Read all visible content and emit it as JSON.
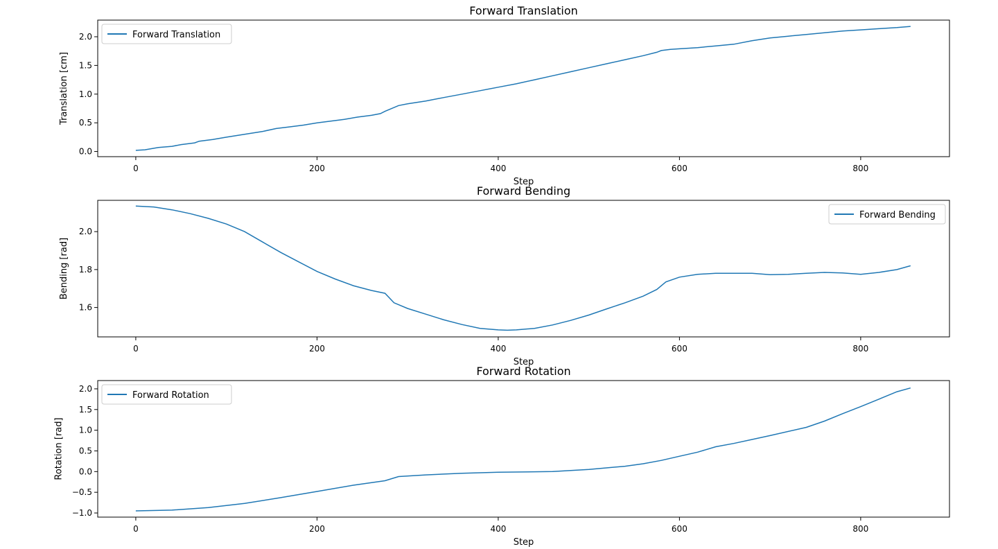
{
  "figure": {
    "line_color": "#1f77b4",
    "background": "#ffffff"
  },
  "chart_data": [
    {
      "type": "line",
      "title": "Forward Translation",
      "xlabel": "Step",
      "ylabel": "Translation [cm]",
      "xlim": [
        -42,
        898
      ],
      "ylim": [
        -0.09,
        2.29
      ],
      "xticks": [
        0,
        200,
        400,
        600,
        800
      ],
      "xtick_labels": [
        "0",
        "200",
        "400",
        "600",
        "800"
      ],
      "yticks": [
        0.0,
        0.5,
        1.0,
        1.5,
        2.0
      ],
      "ytick_labels": [
        "0.0",
        "0.5",
        "1.0",
        "1.5",
        "2.0"
      ],
      "legend_position": "top-left",
      "grid": false,
      "series": [
        {
          "name": "Forward Translation",
          "color": "#1f77b4",
          "x": [
            0,
            10,
            25,
            40,
            50,
            65,
            70,
            85,
            100,
            120,
            140,
            155,
            170,
            185,
            200,
            215,
            230,
            245,
            260,
            270,
            275,
            290,
            300,
            320,
            340,
            360,
            380,
            400,
            420,
            440,
            460,
            480,
            500,
            520,
            540,
            560,
            575,
            580,
            590,
            600,
            620,
            640,
            660,
            680,
            700,
            720,
            740,
            760,
            780,
            800,
            820,
            840,
            855
          ],
          "y": [
            0.02,
            0.03,
            0.07,
            0.09,
            0.12,
            0.15,
            0.18,
            0.21,
            0.25,
            0.3,
            0.35,
            0.4,
            0.43,
            0.46,
            0.5,
            0.53,
            0.56,
            0.6,
            0.63,
            0.66,
            0.7,
            0.8,
            0.83,
            0.88,
            0.94,
            1.0,
            1.06,
            1.12,
            1.18,
            1.25,
            1.32,
            1.39,
            1.46,
            1.53,
            1.6,
            1.67,
            1.73,
            1.76,
            1.78,
            1.79,
            1.81,
            1.84,
            1.87,
            1.93,
            1.98,
            2.01,
            2.04,
            2.07,
            2.1,
            2.12,
            2.14,
            2.16,
            2.18
          ]
        }
      ]
    },
    {
      "type": "line",
      "title": "Forward Bending",
      "xlabel": "Step",
      "ylabel": "Bending [rad]",
      "xlim": [
        -42,
        898
      ],
      "ylim": [
        1.445,
        2.165
      ],
      "xticks": [
        0,
        200,
        400,
        600,
        800
      ],
      "xtick_labels": [
        "0",
        "200",
        "400",
        "600",
        "800"
      ],
      "yticks": [
        1.6,
        1.8,
        2.0
      ],
      "ytick_labels": [
        "1.6",
        "1.8",
        "2.0"
      ],
      "legend_position": "top-right",
      "grid": false,
      "series": [
        {
          "name": "Forward Bending",
          "color": "#1f77b4",
          "x": [
            0,
            20,
            40,
            60,
            80,
            100,
            120,
            140,
            160,
            180,
            200,
            220,
            240,
            260,
            275,
            285,
            300,
            320,
            340,
            360,
            380,
            400,
            410,
            420,
            440,
            460,
            480,
            500,
            520,
            540,
            560,
            575,
            585,
            600,
            620,
            640,
            660,
            680,
            700,
            720,
            740,
            760,
            780,
            800,
            820,
            840,
            855
          ],
          "y": [
            2.135,
            2.13,
            2.115,
            2.095,
            2.07,
            2.04,
            2.0,
            1.945,
            1.89,
            1.84,
            1.79,
            1.75,
            1.715,
            1.69,
            1.675,
            1.625,
            1.595,
            1.565,
            1.535,
            1.51,
            1.49,
            1.482,
            1.48,
            1.482,
            1.49,
            1.508,
            1.532,
            1.56,
            1.593,
            1.625,
            1.66,
            1.695,
            1.735,
            1.76,
            1.775,
            1.78,
            1.78,
            1.78,
            1.773,
            1.775,
            1.78,
            1.785,
            1.782,
            1.775,
            1.785,
            1.8,
            1.82
          ]
        }
      ]
    },
    {
      "type": "line",
      "title": "Forward Rotation",
      "xlabel": "Step",
      "ylabel": "Rotation [rad]",
      "xlim": [
        -42,
        898
      ],
      "ylim": [
        -1.1,
        2.2
      ],
      "xticks": [
        0,
        200,
        400,
        600,
        800
      ],
      "xtick_labels": [
        "0",
        "200",
        "400",
        "600",
        "800"
      ],
      "yticks": [
        -1.0,
        -0.5,
        0.0,
        0.5,
        1.0,
        1.5,
        2.0
      ],
      "ytick_labels": [
        "−1.0",
        "−0.5",
        "0.0",
        "0.5",
        "1.0",
        "1.5",
        "2.0"
      ],
      "legend_position": "top-left",
      "grid": false,
      "series": [
        {
          "name": "Forward Rotation",
          "color": "#1f77b4",
          "x": [
            0,
            40,
            80,
            120,
            160,
            200,
            240,
            275,
            290,
            320,
            360,
            400,
            440,
            460,
            500,
            540,
            560,
            580,
            600,
            620,
            640,
            660,
            700,
            740,
            760,
            780,
            800,
            820,
            840,
            855
          ],
          "y": [
            -0.95,
            -0.93,
            -0.87,
            -0.77,
            -0.63,
            -0.48,
            -0.33,
            -0.22,
            -0.12,
            -0.08,
            -0.04,
            -0.015,
            -0.005,
            0.0,
            0.05,
            0.13,
            0.19,
            0.27,
            0.37,
            0.47,
            0.6,
            0.68,
            0.87,
            1.07,
            1.22,
            1.4,
            1.57,
            1.75,
            1.93,
            2.02
          ]
        }
      ]
    }
  ]
}
